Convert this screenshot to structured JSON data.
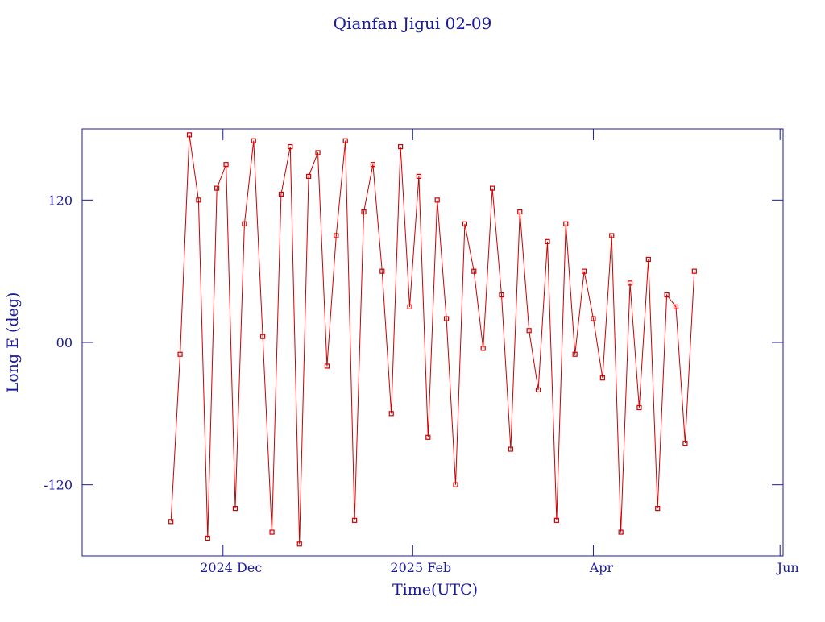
{
  "chart_data": {
    "type": "line",
    "title": "Qianfan Jigui 02-09",
    "x_label": "Time(UTC)",
    "y_label": "Long E (deg)",
    "xlim": [
      "2024-10-16",
      "2025-06-02"
    ],
    "xticks": [
      {
        "value": "2024-12-01",
        "label": "2024 Dec"
      },
      {
        "value": "2025-02-01",
        "label": "2025 Feb"
      },
      {
        "value": "2025-04-01",
        "label": "Apr"
      },
      {
        "value": "2025-06-01",
        "label": "Jun"
      }
    ],
    "ylim": [
      -180,
      180
    ],
    "yticks": [
      -120,
      {
        "value": 0,
        "label": "00"
      },
      120
    ],
    "axis_color": "#1a1a9c",
    "series": [
      {
        "color": "#cc0000",
        "x": [
          "2024-11-14",
          "2024-11-17",
          "2024-11-20",
          "2024-11-23",
          "2024-11-26",
          "2024-11-29",
          "2024-12-02",
          "2024-12-05",
          "2024-12-08",
          "2024-12-11",
          "2024-12-14",
          "2024-12-17",
          "2024-12-20",
          "2024-12-23",
          "2024-12-26",
          "2024-12-29",
          "2025-01-01",
          "2025-01-04",
          "2025-01-07",
          "2025-01-10",
          "2025-01-13",
          "2025-01-16",
          "2025-01-19",
          "2025-01-22",
          "2025-01-25",
          "2025-01-28",
          "2025-01-31",
          "2025-02-03",
          "2025-02-06",
          "2025-02-09",
          "2025-02-12",
          "2025-02-15",
          "2025-02-18",
          "2025-02-21",
          "2025-02-24",
          "2025-02-27",
          "2025-03-02",
          "2025-03-05",
          "2025-03-08",
          "2025-03-11",
          "2025-03-14",
          "2025-03-17",
          "2025-03-20",
          "2025-03-23",
          "2025-03-26",
          "2025-03-29",
          "2025-04-01",
          "2025-04-04",
          "2025-04-07",
          "2025-04-10",
          "2025-04-13",
          "2025-04-16",
          "2025-04-19",
          "2025-04-22",
          "2025-04-25",
          "2025-04-28",
          "2025-05-01",
          "2025-05-04"
        ],
        "values": [
          -151,
          -10,
          175,
          120,
          -165,
          130,
          150,
          -140,
          100,
          170,
          5,
          -160,
          125,
          165,
          -170,
          140,
          160,
          -20,
          90,
          170,
          -150,
          110,
          150,
          60,
          -60,
          165,
          30,
          140,
          -80,
          120,
          20,
          -120,
          100,
          60,
          -5,
          130,
          40,
          -90,
          110,
          10,
          -40,
          85,
          -150,
          100,
          -10,
          60,
          20,
          -30,
          90,
          -160,
          50,
          -55,
          70,
          -140,
          40,
          30,
          -85,
          60
        ]
      }
    ]
  }
}
